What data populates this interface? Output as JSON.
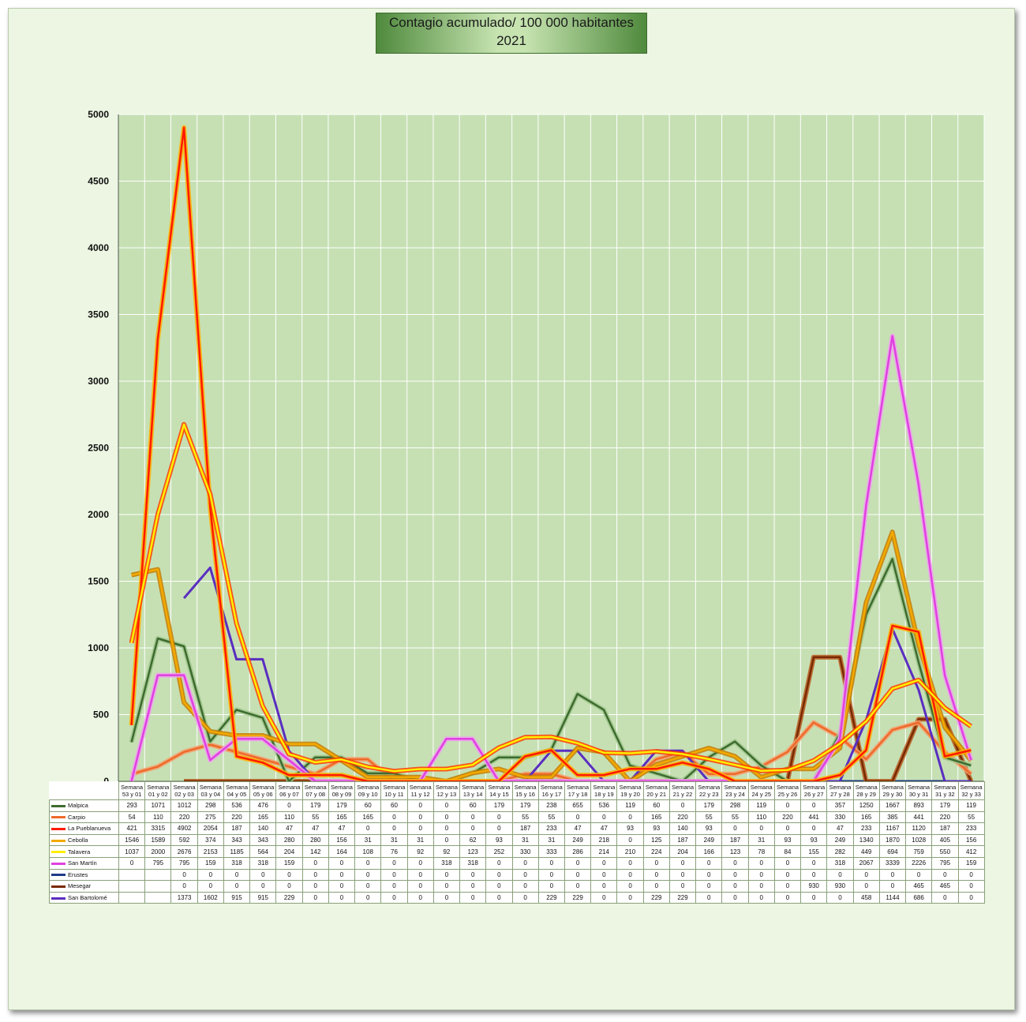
{
  "title": [
    "Contagio acumulado/ 100 000 habitantes",
    "2021"
  ],
  "colors": {
    "plot_bg": "#c6e0b4",
    "grid": "#ffffff",
    "Malpica": "#3d6b2f",
    "Carpio": "#ee6a2a",
    "La Pueblanueva": "#ff1a00",
    "Cebolla": "#f2a900",
    "Talavera": "#ffee00",
    "San Martín": "#e040e0",
    "Erustes": "#1f3a8a",
    "Mesegar": "#7a2a00",
    "San Bartolomé": "#5a2ec0"
  },
  "chart_data": {
    "type": "line",
    "title": "Contagio acumulado/ 100 000 habitantes 2021",
    "ylim": [
      0,
      5000
    ],
    "yticks": [
      "0",
      "500",
      "1000",
      "1500",
      "2000",
      "2500",
      "3000",
      "3500",
      "4000",
      "4500",
      "5000"
    ],
    "categories": [
      [
        "Semana",
        "53 y 01"
      ],
      [
        "Semana",
        "01 y 02"
      ],
      [
        "Semana",
        "02 y 03"
      ],
      [
        "Semana",
        "03 y 04"
      ],
      [
        "Semana",
        "04 y 05"
      ],
      [
        "Semana",
        "05 y 06"
      ],
      [
        "Semana",
        "06 y 07"
      ],
      [
        "Semana",
        "07 y 08"
      ],
      [
        "Semana",
        "08 y 09"
      ],
      [
        "Semana",
        "09 y 10"
      ],
      [
        "Semana",
        "10 y 11"
      ],
      [
        "Semana",
        "11 y 12"
      ],
      [
        "Semana",
        "12 y 13"
      ],
      [
        "Semana",
        "13 y 14"
      ],
      [
        "Semana",
        "14 y 15"
      ],
      [
        "Semana",
        "15 y 16"
      ],
      [
        "Semana",
        "16 y 17"
      ],
      [
        "Semana",
        "17 y 18"
      ],
      [
        "Semana",
        "18 y 19"
      ],
      [
        "Semana",
        "19 y 20"
      ],
      [
        "Semana",
        "20 y 21"
      ],
      [
        "Semana",
        "21 y 22"
      ],
      [
        "Semana",
        "22 y 23"
      ],
      [
        "Semana",
        "23 y 24"
      ],
      [
        "Semana",
        "24 y 25"
      ],
      [
        "Semana",
        "25 y 26"
      ],
      [
        "Semana",
        "26 y 27"
      ],
      [
        "Semana",
        "27 y 28"
      ],
      [
        "Semana",
        "28 y 29"
      ],
      [
        "Semana",
        "29 y 30"
      ],
      [
        "Semana",
        "30 y 31"
      ],
      [
        "Semana",
        "31 y 32"
      ],
      [
        "Semana",
        "32 y 33"
      ]
    ],
    "series": [
      {
        "name": "Malpica",
        "values": [
          293,
          1071,
          1012,
          298,
          536,
          476,
          0,
          179,
          179,
          60,
          60,
          0,
          0,
          60,
          179,
          179,
          238,
          655,
          536,
          119,
          60,
          0,
          179,
          298,
          119,
          0,
          0,
          357,
          1250,
          1667,
          893,
          179,
          119
        ]
      },
      {
        "name": "Carpio",
        "values": [
          54,
          110,
          220,
          275,
          220,
          165,
          110,
          55,
          165,
          165,
          0,
          0,
          0,
          0,
          0,
          55,
          55,
          0,
          0,
          0,
          165,
          220,
          55,
          55,
          110,
          220,
          441,
          330,
          165,
          385,
          441,
          220,
          55
        ]
      },
      {
        "name": "La Pueblanueva",
        "values": [
          421,
          3315,
          4902,
          2054,
          187,
          140,
          47,
          47,
          47,
          0,
          0,
          0,
          0,
          0,
          0,
          187,
          233,
          47,
          47,
          93,
          93,
          140,
          93,
          0,
          0,
          0,
          0,
          47,
          233,
          1167,
          1120,
          187,
          233
        ]
      },
      {
        "name": "Cebolla",
        "values": [
          1546,
          1589,
          592,
          374,
          343,
          343,
          280,
          280,
          156,
          31,
          31,
          31,
          0,
          62,
          93,
          31,
          31,
          249,
          218,
          0,
          125,
          187,
          249,
          187,
          31,
          93,
          93,
          249,
          1340,
          1870,
          1028,
          405,
          156
        ]
      },
      {
        "name": "Talavera",
        "values": [
          1037,
          2000,
          2676,
          2153,
          1185,
          564,
          204,
          142,
          164,
          108,
          76,
          92,
          92,
          123,
          252,
          330,
          333,
          286,
          214,
          210,
          224,
          204,
          166,
          123,
          78,
          84,
          155,
          282,
          449,
          694,
          759,
          550,
          412
        ]
      },
      {
        "name": "San Martín",
        "values": [
          0,
          795,
          795,
          159,
          318,
          318,
          159,
          0,
          0,
          0,
          0,
          0,
          318,
          318,
          0,
          0,
          0,
          0,
          0,
          0,
          0,
          0,
          0,
          0,
          0,
          0,
          0,
          318,
          2067,
          3339,
          2226,
          795,
          159
        ]
      },
      {
        "name": "Erustes",
        "values": [
          null,
          null,
          0,
          0,
          0,
          0,
          0,
          0,
          0,
          0,
          0,
          0,
          0,
          0,
          0,
          0,
          0,
          0,
          0,
          0,
          0,
          0,
          0,
          0,
          0,
          0,
          0,
          0,
          0,
          0,
          0,
          0,
          0
        ]
      },
      {
        "name": "Mesegar",
        "values": [
          null,
          null,
          0,
          0,
          0,
          0,
          0,
          0,
          0,
          0,
          0,
          0,
          0,
          0,
          0,
          0,
          0,
          0,
          0,
          0,
          0,
          0,
          0,
          0,
          0,
          0,
          930,
          930,
          0,
          0,
          465,
          465,
          0
        ]
      },
      {
        "name": "San Bartolomé",
        "values": [
          null,
          null,
          1373,
          1602,
          915,
          915,
          229,
          0,
          0,
          0,
          0,
          0,
          0,
          0,
          0,
          0,
          229,
          229,
          0,
          0,
          229,
          229,
          0,
          0,
          0,
          0,
          0,
          0,
          458,
          1144,
          686,
          0,
          0
        ]
      }
    ]
  }
}
